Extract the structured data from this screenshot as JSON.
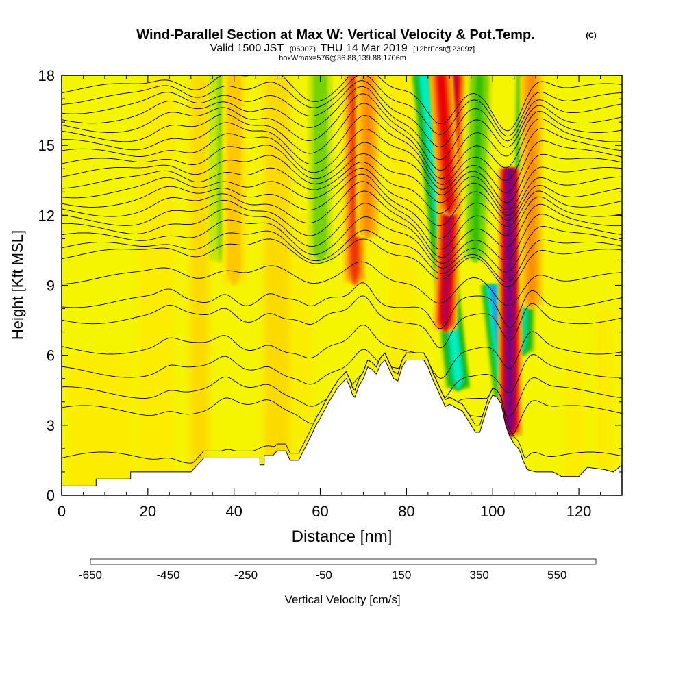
{
  "chart_data": {
    "type": "heatmap",
    "title": "Wind-Parallel Section at Max W: Vertical Velocity & Pot.Temp.",
    "title_mark": "(C)",
    "subtitle_parts": [
      "Valid 1500 JST",
      "(0600Z)",
      "THU 14 Mar 2019",
      "[12hrFcst@2309z]"
    ],
    "subtitle2": "boxWmax=576@36.88,139.88,1706m",
    "xlabel": "Distance [nm]",
    "ylabel": "Height [Kft MSL]",
    "xlim": [
      0,
      130
    ],
    "ylim": [
      0,
      18
    ],
    "x_ticks": [
      "0",
      "20",
      "40",
      "60",
      "80",
      "100",
      "120"
    ],
    "x_tick_values": [
      0,
      20,
      40,
      60,
      80,
      100,
      120
    ],
    "y_ticks": [
      "0",
      "3",
      "6",
      "9",
      "12",
      "15",
      "18"
    ],
    "y_tick_values": [
      0,
      3,
      6,
      9,
      12,
      15,
      18
    ],
    "colorbar": {
      "label": "Vertical Velocity [cm/s]",
      "tick_labels": [
        "-650",
        "-450",
        "-250",
        "-50",
        "150",
        "350",
        "550"
      ],
      "tick_values": [
        -650,
        -450,
        -250,
        -50,
        150,
        350,
        550
      ],
      "min": -650,
      "max": 650,
      "colors": [
        "#0000ff",
        "#0a32f0",
        "#1464f0",
        "#1e96f0",
        "#00c8f0",
        "#00f0c8",
        "#00dc96",
        "#00c864",
        "#14b432",
        "#32be00",
        "#78d200",
        "#c8e600",
        "#f5f500",
        "#ffe600",
        "#ffc800",
        "#ffaa00",
        "#ff8c00",
        "#ff6400",
        "#f03200",
        "#e60000",
        "#d20032",
        "#b40050",
        "#96006e",
        "#780082",
        "#5a0078"
      ]
    },
    "terrain": {
      "x": [
        0,
        8,
        8,
        16,
        16,
        20,
        30,
        33,
        38,
        46,
        46,
        47,
        47,
        49,
        50,
        52,
        53,
        55,
        58,
        59,
        60,
        62,
        63,
        64,
        65,
        66,
        67,
        67.5,
        68,
        69,
        70,
        71,
        72,
        73,
        74,
        75,
        76,
        77,
        78,
        79,
        80,
        81,
        82,
        83,
        84,
        85,
        86,
        87,
        88,
        89,
        90,
        91,
        92,
        93,
        94,
        95,
        96,
        97,
        98,
        99,
        100,
        101,
        102,
        103,
        104,
        105,
        106,
        106.5,
        107,
        108,
        110,
        114,
        116,
        120,
        122,
        126,
        128,
        130
      ],
      "height_kft": [
        0.4,
        0.4,
        0.7,
        0.7,
        1.0,
        1.0,
        1.0,
        1.6,
        1.6,
        1.6,
        1.3,
        1.3,
        1.7,
        1.7,
        1.9,
        1.9,
        1.5,
        1.5,
        2.6,
        3.0,
        3.3,
        4.0,
        4.3,
        4.6,
        4.8,
        5.0,
        4.6,
        4.3,
        4.2,
        4.7,
        5.0,
        5.5,
        5.4,
        5.2,
        5.6,
        5.8,
        5.4,
        5.0,
        4.9,
        5.5,
        5.8,
        5.8,
        5.8,
        5.8,
        5.8,
        5.5,
        5.0,
        4.6,
        4.2,
        3.8,
        3.9,
        3.8,
        3.7,
        3.6,
        3.3,
        3.0,
        2.7,
        2.7,
        3.3,
        3.9,
        4.3,
        4.2,
        3.9,
        3.0,
        2.5,
        2.2,
        2.0,
        1.8,
        1.5,
        1.1,
        1.0,
        1.0,
        0.8,
        0.8,
        1.2,
        1.1,
        1.0,
        1.3
      ]
    },
    "updrafts": [
      {
        "x_top": 68,
        "x_bottom": 68,
        "z_top": 18,
        "z_bottom": 9,
        "peak_cm_s": 300
      },
      {
        "x_top": 71,
        "x_bottom": 71,
        "z_top": 18,
        "z_bottom": 11,
        "peak_cm_s": 200
      },
      {
        "x_top": 91,
        "x_bottom": 89,
        "z_top": 18,
        "z_bottom": 7,
        "peak_cm_s": 450
      },
      {
        "x_top": 88,
        "x_bottom": 90,
        "z_top": 18,
        "z_bottom": 12,
        "peak_cm_s": 350
      },
      {
        "x_top": 104,
        "x_bottom": 104,
        "z_top": 14,
        "z_bottom": 2.5,
        "peak_cm_s": 576
      },
      {
        "x_top": 109,
        "x_bottom": 109,
        "z_top": 18,
        "z_bottom": 8,
        "peak_cm_s": 200
      },
      {
        "x_top": 40,
        "x_bottom": 40,
        "z_top": 18,
        "z_bottom": 9,
        "peak_cm_s": 120
      }
    ],
    "downdrafts": [
      {
        "x_top": 84,
        "x_bottom": 92,
        "z_top": 18,
        "z_bottom": 4.5,
        "peak_cm_s": -350
      },
      {
        "x_top": 100,
        "x_bottom": 104,
        "z_top": 9,
        "z_bottom": 2.5,
        "peak_cm_s": -450
      },
      {
        "x_top": 108,
        "x_bottom": 107,
        "z_top": 18,
        "z_bottom": 6,
        "peak_cm_s": -300
      },
      {
        "x_top": 97,
        "x_bottom": 96,
        "z_top": 18,
        "z_bottom": 10,
        "peak_cm_s": -150
      },
      {
        "x_top": 60,
        "x_bottom": 60,
        "z_top": 18,
        "z_bottom": 10,
        "peak_cm_s": -120
      },
      {
        "x_top": 37,
        "x_bottom": 37,
        "z_top": 18,
        "z_bottom": 10,
        "peak_cm_s": -80
      }
    ],
    "isentrope_levels_kft": [
      1.6,
      3.6,
      4.4,
      5.3,
      6.3,
      7.6,
      8.3,
      9.3,
      10.3,
      10.6,
      11.0,
      11.4,
      11.8,
      12.2,
      12.6,
      13.0,
      13.4,
      13.8,
      14.2,
      14.6,
      15.0,
      15.4,
      15.8,
      16.2,
      16.6,
      17.0,
      17.4
    ]
  }
}
